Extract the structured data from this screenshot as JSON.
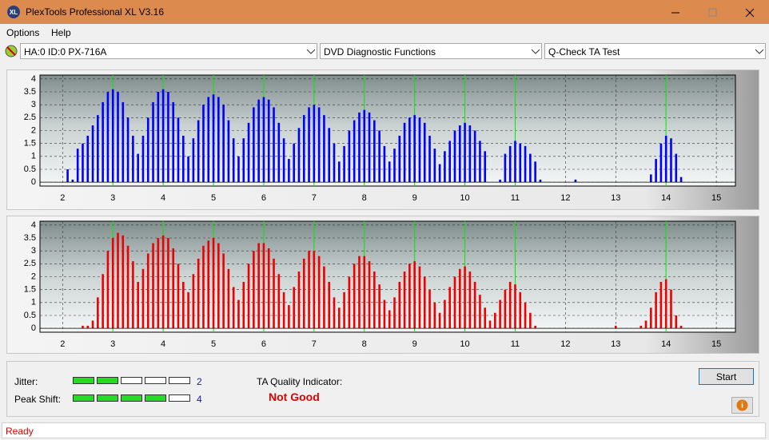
{
  "window": {
    "title": "PlexTools Professional XL V3.16"
  },
  "menu": [
    "Options",
    "Help"
  ],
  "toolbar": {
    "drive": "HA:0 ID:0  PX-716A",
    "function": "DVD Diagnostic Functions",
    "test": "Q-Check TA Test"
  },
  "chart_data": [
    {
      "type": "bar",
      "color": "#0000ff",
      "grid": true,
      "reference_color": "#00ee00",
      "reference_lines": [
        3,
        4,
        5,
        6,
        7,
        8,
        9,
        10,
        11,
        14
      ],
      "xlim": [
        1.55,
        15.38
      ],
      "xticks": [
        2,
        3,
        4,
        5,
        6,
        7,
        8,
        9,
        10,
        11,
        12,
        13,
        14,
        15
      ],
      "ylim": [
        -0.15,
        4.15
      ],
      "yticks": [
        0,
        0.5,
        1,
        1.5,
        2,
        2.5,
        3,
        3.5,
        4
      ],
      "x": [
        2.1,
        2.2,
        2.3,
        2.4,
        2.5,
        2.6,
        2.7,
        2.8,
        2.9,
        3.0,
        3.1,
        3.2,
        3.3,
        3.4,
        3.5,
        3.6,
        3.7,
        3.8,
        3.9,
        4.0,
        4.1,
        4.2,
        4.3,
        4.4,
        4.5,
        4.6,
        4.7,
        4.8,
        4.9,
        5.0,
        5.1,
        5.2,
        5.3,
        5.4,
        5.5,
        5.6,
        5.7,
        5.8,
        5.9,
        6.0,
        6.1,
        6.2,
        6.3,
        6.4,
        6.5,
        6.6,
        6.7,
        6.8,
        6.9,
        7.0,
        7.1,
        7.2,
        7.3,
        7.4,
        7.5,
        7.6,
        7.7,
        7.8,
        7.9,
        8.0,
        8.1,
        8.2,
        8.3,
        8.4,
        8.5,
        8.6,
        8.7,
        8.8,
        8.9,
        9.0,
        9.1,
        9.2,
        9.3,
        9.4,
        9.5,
        9.6,
        9.7,
        9.8,
        9.9,
        10.0,
        10.1,
        10.2,
        10.3,
        10.4,
        10.7,
        10.8,
        10.9,
        11.0,
        11.1,
        11.2,
        11.3,
        11.4,
        11.5,
        12.2,
        13.7,
        13.8,
        13.9,
        14.0,
        14.1,
        14.2,
        14.3
      ],
      "values": [
        0.5,
        0.1,
        1.3,
        1.5,
        1.8,
        2.2,
        2.6,
        3.1,
        3.5,
        3.6,
        3.5,
        3.1,
        2.5,
        1.8,
        1.1,
        1.8,
        2.5,
        3.1,
        3.5,
        3.6,
        3.5,
        3.1,
        2.5,
        1.8,
        1.0,
        1.7,
        2.4,
        3.0,
        3.3,
        3.4,
        3.3,
        3.0,
        2.4,
        1.7,
        1.0,
        1.7,
        2.3,
        2.9,
        3.2,
        3.3,
        3.2,
        2.9,
        2.3,
        1.7,
        0.9,
        1.5,
        2.1,
        2.6,
        2.9,
        3.0,
        2.9,
        2.6,
        2.1,
        1.5,
        0.8,
        1.4,
        2.0,
        2.4,
        2.7,
        2.8,
        2.7,
        2.4,
        2.0,
        1.4,
        0.8,
        1.3,
        1.8,
        2.3,
        2.5,
        2.6,
        2.5,
        2.3,
        1.8,
        1.3,
        0.7,
        1.2,
        1.6,
        2.0,
        2.2,
        2.3,
        2.2,
        2.0,
        1.6,
        1.2,
        0.1,
        1.1,
        1.4,
        1.6,
        1.5,
        1.4,
        1.1,
        0.8,
        0.1,
        0.1,
        0.3,
        0.9,
        1.5,
        1.8,
        1.7,
        1.1,
        0.2
      ]
    },
    {
      "type": "bar",
      "color": "#ee0000",
      "grid": true,
      "reference_color": "#00ee00",
      "reference_lines": [
        3,
        4,
        5,
        6,
        7,
        8,
        9,
        10,
        11,
        14
      ],
      "xlim": [
        1.55,
        15.38
      ],
      "xticks": [
        2,
        3,
        4,
        5,
        6,
        7,
        8,
        9,
        10,
        11,
        12,
        13,
        14,
        15
      ],
      "ylim": [
        -0.15,
        4.15
      ],
      "yticks": [
        0,
        0.5,
        1,
        1.5,
        2,
        2.5,
        3,
        3.5,
        4
      ],
      "x": [
        2.4,
        2.5,
        2.6,
        2.7,
        2.8,
        2.9,
        3.0,
        3.1,
        3.2,
        3.3,
        3.4,
        3.5,
        3.6,
        3.7,
        3.8,
        3.9,
        4.0,
        4.1,
        4.2,
        4.3,
        4.4,
        4.5,
        4.6,
        4.7,
        4.8,
        4.9,
        5.0,
        5.1,
        5.2,
        5.3,
        5.4,
        5.5,
        5.6,
        5.7,
        5.8,
        5.9,
        6.0,
        6.1,
        6.2,
        6.3,
        6.4,
        6.5,
        6.6,
        6.7,
        6.8,
        6.9,
        7.0,
        7.1,
        7.2,
        7.3,
        7.4,
        7.5,
        7.6,
        7.7,
        7.8,
        7.9,
        8.0,
        8.1,
        8.2,
        8.3,
        8.4,
        8.5,
        8.6,
        8.7,
        8.8,
        8.9,
        9.0,
        9.1,
        9.2,
        9.3,
        9.4,
        9.5,
        9.6,
        9.7,
        9.8,
        9.9,
        10.0,
        10.1,
        10.2,
        10.3,
        10.4,
        10.5,
        10.6,
        10.7,
        10.8,
        10.9,
        11.0,
        11.1,
        11.2,
        11.3,
        11.4,
        13.0,
        13.5,
        13.6,
        13.7,
        13.8,
        13.9,
        14.0,
        14.1,
        14.2,
        14.3
      ],
      "values": [
        0.1,
        0.1,
        0.3,
        1.2,
        2.1,
        3.0,
        3.5,
        3.7,
        3.6,
        3.2,
        2.6,
        1.8,
        2.3,
        2.9,
        3.3,
        3.5,
        3.6,
        3.5,
        3.1,
        2.5,
        1.8,
        1.4,
        2.1,
        2.7,
        3.2,
        3.4,
        3.5,
        3.3,
        2.9,
        2.3,
        1.6,
        1.1,
        1.8,
        2.5,
        3.0,
        3.3,
        3.3,
        3.1,
        2.7,
        2.1,
        1.4,
        0.9,
        1.6,
        2.2,
        2.7,
        3.0,
        3.0,
        2.8,
        2.4,
        1.8,
        1.2,
        0.8,
        1.4,
        2.0,
        2.5,
        2.8,
        2.8,
        2.6,
        2.2,
        1.7,
        1.1,
        0.7,
        1.2,
        1.8,
        2.2,
        2.5,
        2.6,
        2.4,
        2.0,
        1.5,
        1.0,
        0.6,
        1.1,
        1.6,
        2.0,
        2.3,
        2.4,
        2.2,
        1.8,
        1.3,
        0.8,
        0.3,
        0.6,
        1.1,
        1.5,
        1.8,
        1.7,
        1.4,
        1.0,
        0.6,
        0.1,
        0.1,
        0.1,
        0.3,
        0.8,
        1.4,
        1.8,
        1.9,
        1.5,
        0.5,
        0.1
      ]
    }
  ],
  "jitter": {
    "label": "Jitter:",
    "value": 2
  },
  "peak_shift": {
    "label": "Peak Shift:",
    "value": 4
  },
  "ta_quality": {
    "label": "TA Quality Indicator:",
    "result": "Not Good"
  },
  "start_button": "Start",
  "status": "Ready"
}
